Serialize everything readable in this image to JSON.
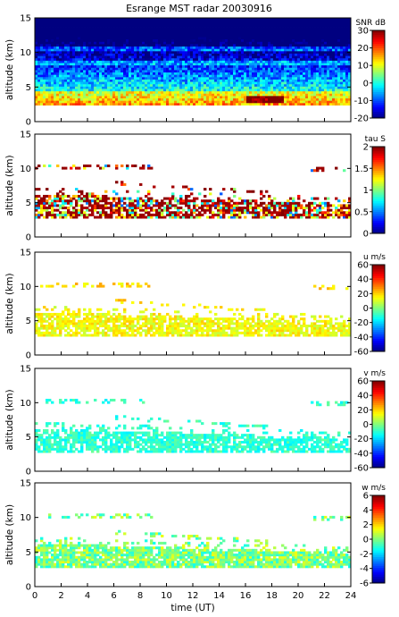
{
  "figure": {
    "title": "Esrange MST radar 20030916"
  },
  "chart_data": [
    {
      "type": "heatmap",
      "ylabel": "altitude (km)",
      "ylim": [
        0,
        15
      ],
      "yticks": [
        0,
        5,
        10,
        15
      ],
      "xlim": [
        0,
        24
      ],
      "colorbar": {
        "title": "SNR dB",
        "range": [
          -20,
          30
        ],
        "ticks": [
          -20,
          -10,
          0,
          10,
          20,
          30
        ]
      }
    },
    {
      "type": "heatmap",
      "ylabel": "altitude (km)",
      "ylim": [
        0,
        15
      ],
      "yticks": [
        0,
        5,
        10,
        15
      ],
      "xlim": [
        0,
        24
      ],
      "colorbar": {
        "title": "tau S",
        "range": [
          0,
          2
        ],
        "ticks": [
          0,
          0.5,
          1,
          1.5,
          2
        ]
      }
    },
    {
      "type": "heatmap",
      "ylabel": "altitude (km)",
      "ylim": [
        0,
        15
      ],
      "yticks": [
        0,
        5,
        10,
        15
      ],
      "xlim": [
        0,
        24
      ],
      "colorbar": {
        "title": "u m/s",
        "range": [
          -60,
          60
        ],
        "ticks": [
          -60,
          -40,
          -20,
          0,
          20,
          40,
          60
        ]
      }
    },
    {
      "type": "heatmap",
      "ylabel": "altitude (km)",
      "ylim": [
        0,
        15
      ],
      "yticks": [
        0,
        5,
        10,
        15
      ],
      "xlim": [
        0,
        24
      ],
      "colorbar": {
        "title": "v m/s",
        "range": [
          -60,
          60
        ],
        "ticks": [
          -60,
          -40,
          -20,
          0,
          20,
          40,
          60
        ]
      }
    },
    {
      "type": "heatmap",
      "ylabel": "altitude (km)",
      "xlabel": "time (UT)",
      "ylim": [
        0,
        15
      ],
      "yticks": [
        0,
        5,
        10,
        15
      ],
      "xlim": [
        0,
        24
      ],
      "xticks": [
        0,
        2,
        4,
        6,
        8,
        10,
        12,
        14,
        16,
        18,
        20,
        22,
        24
      ],
      "colorbar": {
        "title": "w m/s",
        "range": [
          -6,
          6
        ],
        "ticks": [
          -6,
          -4,
          -2,
          0,
          2,
          4,
          6
        ]
      }
    }
  ]
}
